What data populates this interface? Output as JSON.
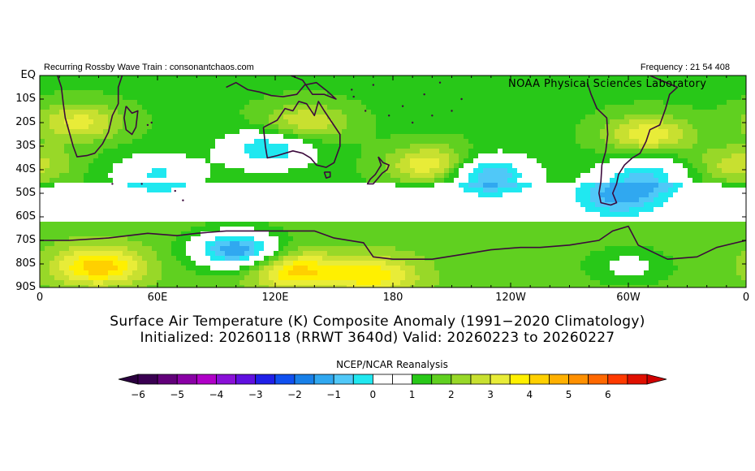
{
  "header": {
    "left_text": "Recurring Rossby Wave Train : consonantchaos.com",
    "right_text": "Frequency : 21 54 408",
    "lab_label": "NOAA Physical Sciences Laboratory"
  },
  "axes": {
    "lat_labels": [
      "EQ",
      "10S",
      "20S",
      "30S",
      "40S",
      "50S",
      "60S",
      "70S",
      "80S",
      "90S"
    ],
    "lon_labels": [
      "0",
      "60E",
      "120E",
      "180",
      "120W",
      "60W",
      "0"
    ]
  },
  "title": {
    "line1": "Surface Air Temperature (K) Composite Anomaly (1991−2020 Climatology)",
    "line2": "Initialized: 20260118 (RRWT 3640d) Valid: 20260223 to 20260227"
  },
  "colorbar": {
    "title": "NCEP/NCAR Reanalysis",
    "tick_labels": [
      "−6",
      "−5",
      "−4",
      "−3",
      "−2",
      "−1",
      "0",
      "1",
      "2",
      "3",
      "4",
      "5",
      "6"
    ],
    "colors": [
      "#3a0052",
      "#62007a",
      "#8a00a6",
      "#b000c8",
      "#8a10d8",
      "#6010e0",
      "#2020e8",
      "#1050f0",
      "#1880e8",
      "#30a8f0",
      "#50c8f8",
      "#20e8f0",
      "#ffffff",
      "#ffffff",
      "#28c818",
      "#60d020",
      "#98d828",
      "#c8e030",
      "#e8ec38",
      "#fff000",
      "#ffd000",
      "#ffb000",
      "#ff9000",
      "#ff6800",
      "#ff3a00",
      "#e01000"
    ],
    "arrow_left_color": "#2a003e",
    "arrow_right_color": "#d00000"
  },
  "chart_data": {
    "type": "heatmap",
    "title": "Surface Air Temperature (K) Composite Anomaly (1991−2020 Climatology)",
    "subtitle": "Initialized: 20260118 (RRWT 3640d) Valid: 20260223 to 20260227",
    "xlabel": "",
    "ylabel": "",
    "x_range": [
      0,
      360
    ],
    "y_range": [
      -90,
      0
    ],
    "units": "K",
    "contour_levels": [
      -6,
      -5.5,
      -5,
      -4.5,
      -4,
      -3.5,
      -3,
      -2.5,
      -2,
      -1.5,
      -1,
      -0.5,
      0,
      0.5,
      1,
      1.5,
      2,
      2.5,
      3,
      3.5,
      4,
      4.5,
      5,
      5.5,
      6
    ],
    "anomaly_centers": [
      {
        "lon": 100,
        "lat": -74,
        "value": -3.2
      },
      {
        "lon": 60,
        "lat": -42,
        "value": -1.5
      },
      {
        "lon": 117,
        "lat": -31,
        "value": -2.0
      },
      {
        "lon": 228,
        "lat": -42,
        "value": -2.6
      },
      {
        "lon": 310,
        "lat": -42,
        "value": -1.8
      },
      {
        "lon": 295,
        "lat": -52,
        "value": -1.8
      },
      {
        "lon": 300,
        "lat": -81,
        "value": -1.0
      },
      {
        "lon": 200,
        "lat": -38,
        "value": 2.2
      },
      {
        "lon": 30,
        "lat": -81,
        "value": 2.6
      },
      {
        "lon": 130,
        "lat": -83,
        "value": 2.4
      },
      {
        "lon": 310,
        "lat": -25,
        "value": 2.0
      },
      {
        "lon": 20,
        "lat": -20,
        "value": 1.8
      },
      {
        "lon": 135,
        "lat": -20,
        "value": 1.6
      },
      {
        "lon": 355,
        "lat": -38,
        "value": 1.4
      },
      {
        "lon": 170,
        "lat": -85,
        "value": 2.0
      }
    ]
  }
}
